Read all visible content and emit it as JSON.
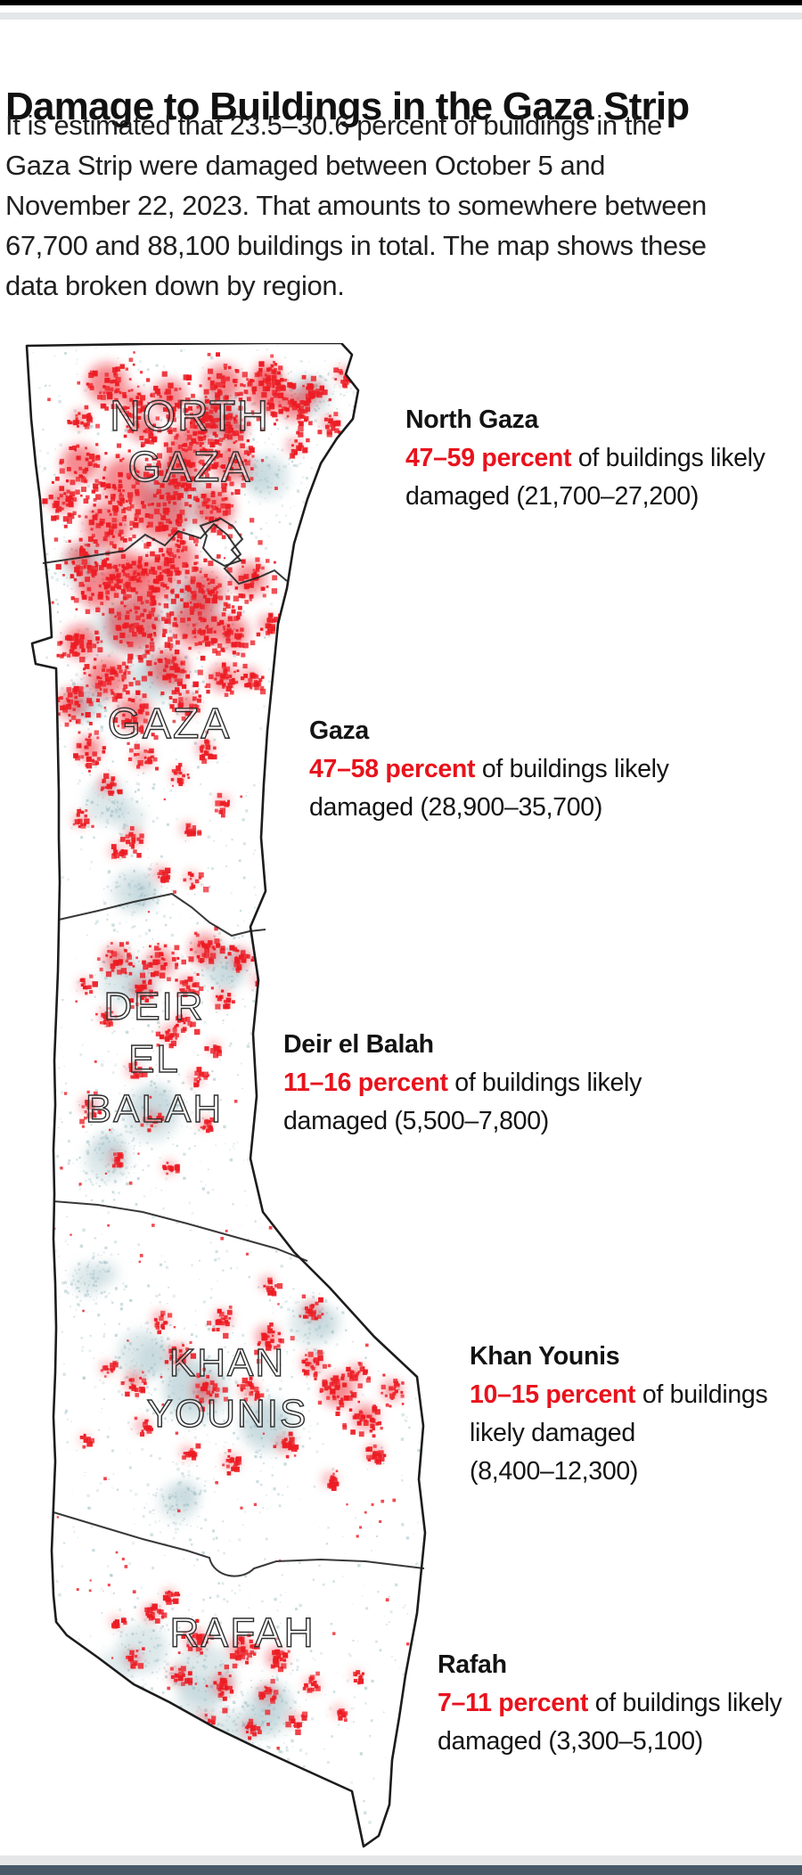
{
  "page": {
    "title": "Damage to Buildings in the Gaza Strip",
    "intro_lines": [
      "It is estimated that 23.5–30.6 percent of buildings in the",
      "Gaza Strip were damaged between October 5 and",
      "November 22, 2023. That amounts to somewhere between",
      "67,700 and 88,100 buildings in total. The map shows these",
      "data broken down by region."
    ]
  },
  "colors": {
    "damage_red": "#ec1c24",
    "accent_red_text": "#e8121c",
    "building_teal": "#8fb4ba",
    "map_outline": "#1c1c1c",
    "divider_gray": "#e4e6e8",
    "top_bar_black": "#000000",
    "footer_navy": "#475869"
  },
  "map": {
    "regions": [
      {
        "name": "North Gaza",
        "map_label_lines": [
          "NORTH",
          "GAZA"
        ],
        "percent_range": "47–59 percent",
        "buildings_range": "21,700–27,200",
        "annotation_lines": [
          [
            {
              "text": "47–59 percent",
              "em": true
            },
            {
              "text": " of buildings likely"
            }
          ],
          [
            {
              "text": "damaged (21,700–27,200)"
            }
          ]
        ]
      },
      {
        "name": "Gaza",
        "map_label_lines": [
          "GAZA"
        ],
        "percent_range": "47–58 percent",
        "buildings_range": "28,900–35,700",
        "annotation_lines": [
          [
            {
              "text": "47–58 percent",
              "em": true
            },
            {
              "text": " of buildings likely"
            }
          ],
          [
            {
              "text": "damaged (28,900–35,700)"
            }
          ]
        ]
      },
      {
        "name": "Deir el Balah",
        "map_label_lines": [
          "DEIR",
          "EL",
          "BALAH"
        ],
        "percent_range": "11–16 percent",
        "buildings_range": "5,500–7,800",
        "annotation_lines": [
          [
            {
              "text": "11–16 percent",
              "em": true
            },
            {
              "text": " of buildings likely"
            }
          ],
          [
            {
              "text": "damaged (5,500–7,800)"
            }
          ]
        ]
      },
      {
        "name": "Khan Younis",
        "map_label_lines": [
          "KHAN",
          "YOUNIS"
        ],
        "percent_range": "10–15 percent",
        "buildings_range": "8,400–12,300",
        "annotation_lines": [
          [
            {
              "text": "10–15 percent",
              "em": true
            },
            {
              "text": " of buildings"
            }
          ],
          [
            {
              "text": "likely damaged"
            }
          ],
          [
            {
              "text": "(8,400–12,300)"
            }
          ]
        ]
      },
      {
        "name": "Rafah",
        "map_label_lines": [
          "RAFAH"
        ],
        "percent_range": "7–11 percent",
        "buildings_range": "3,300–5,100",
        "annotation_lines": [
          [
            {
              "text": "7–11 percent",
              "em": true
            },
            {
              "text": " of buildings likely"
            }
          ],
          [
            {
              "text": "damaged (3,300–5,100)"
            }
          ]
        ]
      }
    ]
  }
}
